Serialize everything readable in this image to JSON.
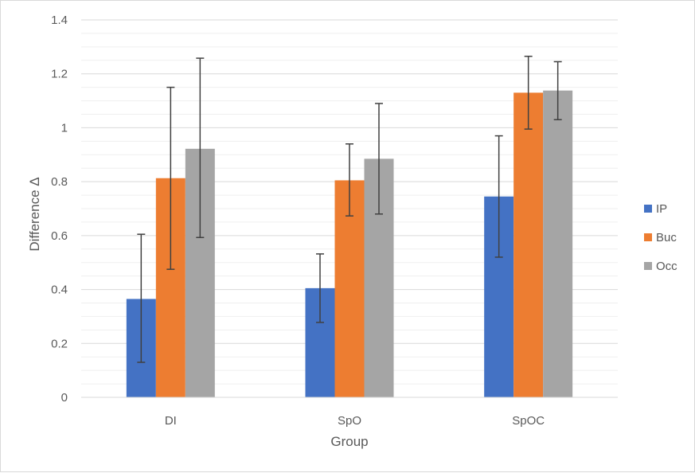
{
  "chart_data": {
    "type": "bar",
    "title": "",
    "xlabel": "Group",
    "ylabel": "Difference Δ",
    "ylim": [
      0,
      1.4
    ],
    "yticks": [
      0,
      0.2,
      0.4,
      0.6,
      0.8,
      1,
      1.2,
      1.4
    ],
    "ytick_labels": [
      "0",
      "0.2",
      "0.4",
      "0.6",
      "0.8",
      "1",
      "1.2",
      "1.4"
    ],
    "minor_grid_step": 0.05,
    "grid": true,
    "legend_position": "right",
    "categories": [
      "DI",
      "SpO",
      "SpOC"
    ],
    "series": [
      {
        "name": "IP",
        "color": "#4472c4",
        "values": [
          0.365,
          0.405,
          0.745
        ],
        "err_low": [
          0.13,
          0.278,
          0.52
        ],
        "err_high": [
          0.605,
          0.532,
          0.97
        ]
      },
      {
        "name": "Buc",
        "color": "#ed7d31",
        "values": [
          0.813,
          0.805,
          1.13
        ],
        "err_low": [
          0.475,
          0.673,
          0.995
        ],
        "err_high": [
          1.15,
          0.94,
          1.265
        ]
      },
      {
        "name": "Occ",
        "color": "#a5a5a5",
        "values": [
          0.922,
          0.885,
          1.138
        ],
        "err_low": [
          0.593,
          0.68,
          1.03
        ],
        "err_high": [
          1.258,
          1.09,
          1.245
        ]
      }
    ]
  }
}
